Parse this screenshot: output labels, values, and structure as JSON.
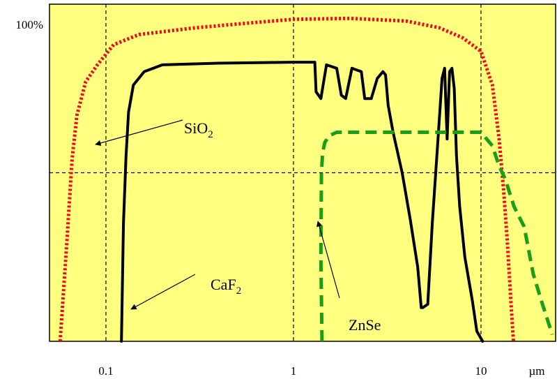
{
  "chart_data": {
    "type": "line",
    "title": "",
    "xlabel": "",
    "ylabel": "",
    "x_scale": "log",
    "xlim": [
      0.05,
      25
    ],
    "ylim": [
      0,
      100
    ],
    "x_ticks": [
      {
        "value": 0.1,
        "label": "0.1"
      },
      {
        "value": 1,
        "label": "1"
      },
      {
        "value": 10,
        "label": "10"
      }
    ],
    "x_unit_label": "µm",
    "y_ticks": [
      {
        "value": 50,
        "label": ""
      },
      {
        "value": 100,
        "label": "100%"
      }
    ],
    "grid": true,
    "background_color": "#ffff80",
    "series": [
      {
        "name": "SiO2",
        "color": "#ff0000",
        "style": "dotted",
        "points": [
          [
            0.057,
            0
          ],
          [
            0.062,
            30
          ],
          [
            0.066,
            54
          ],
          [
            0.07,
            67
          ],
          [
            0.078,
            77
          ],
          [
            0.09,
            82
          ],
          [
            0.11,
            88
          ],
          [
            0.15,
            91
          ],
          [
            0.3,
            93
          ],
          [
            0.6,
            94.5
          ],
          [
            1,
            95.5
          ],
          [
            2,
            95.8
          ],
          [
            4,
            95
          ],
          [
            6,
            93
          ],
          [
            8,
            90
          ],
          [
            10,
            86
          ],
          [
            11.5,
            76
          ],
          [
            12.5,
            60
          ],
          [
            13.2,
            45
          ],
          [
            13.8,
            30
          ],
          [
            14.5,
            10
          ],
          [
            14.9,
            0
          ]
        ]
      },
      {
        "name": "CaF2",
        "color": "#000000",
        "style": "solid",
        "points": [
          [
            0.121,
            0
          ],
          [
            0.124,
            35
          ],
          [
            0.128,
            55
          ],
          [
            0.132,
            68
          ],
          [
            0.14,
            76
          ],
          [
            0.16,
            80
          ],
          [
            0.2,
            82
          ],
          [
            0.4,
            82.5
          ],
          [
            1,
            82.8
          ],
          [
            1.3,
            82.8
          ],
          [
            1.32,
            74
          ],
          [
            1.4,
            72
          ],
          [
            1.5,
            82
          ],
          [
            1.7,
            81
          ],
          [
            1.8,
            73
          ],
          [
            1.9,
            72
          ],
          [
            2.05,
            81
          ],
          [
            2.3,
            80
          ],
          [
            2.4,
            72
          ],
          [
            2.6,
            72
          ],
          [
            2.8,
            78
          ],
          [
            3.0,
            80
          ],
          [
            3.1,
            79
          ],
          [
            3.2,
            70
          ],
          [
            3.4,
            62
          ],
          [
            3.8,
            50
          ],
          [
            4.2,
            36
          ],
          [
            4.6,
            22
          ],
          [
            4.8,
            10
          ],
          [
            4.9,
            10
          ],
          [
            5.2,
            11
          ],
          [
            5.5,
            35
          ],
          [
            5.9,
            60
          ],
          [
            6.2,
            78
          ],
          [
            6.4,
            81
          ],
          [
            6.6,
            60
          ],
          [
            6.8,
            80
          ],
          [
            7.0,
            81
          ],
          [
            7.2,
            75
          ],
          [
            7.4,
            55
          ],
          [
            7.7,
            40
          ],
          [
            8.2,
            25
          ],
          [
            9.0,
            12
          ],
          [
            9.5,
            3
          ],
          [
            10.2,
            0
          ]
        ]
      },
      {
        "name": "ZnSe",
        "color": "#1a9e1a",
        "style": "dashed",
        "points": [
          [
            1.42,
            0
          ],
          [
            1.4,
            25
          ],
          [
            1.41,
            50
          ],
          [
            1.43,
            56
          ],
          [
            1.47,
            59
          ],
          [
            1.55,
            61
          ],
          [
            1.7,
            62
          ],
          [
            2.5,
            62
          ],
          [
            5,
            62
          ],
          [
            10,
            62
          ],
          [
            11.5,
            58
          ],
          [
            12.5,
            52
          ],
          [
            13.5,
            48
          ],
          [
            15,
            40
          ],
          [
            17,
            34
          ],
          [
            19,
            20
          ],
          [
            21,
            12
          ],
          [
            24,
            2
          ]
        ]
      }
    ],
    "annotations": [
      {
        "text": "SiO",
        "subscript": "2",
        "target_series": "SiO2"
      },
      {
        "text": "CaF",
        "subscript": "2",
        "target_series": "CaF2"
      },
      {
        "text": "ZnSe",
        "subscript": "",
        "target_series": "ZnSe"
      }
    ]
  }
}
